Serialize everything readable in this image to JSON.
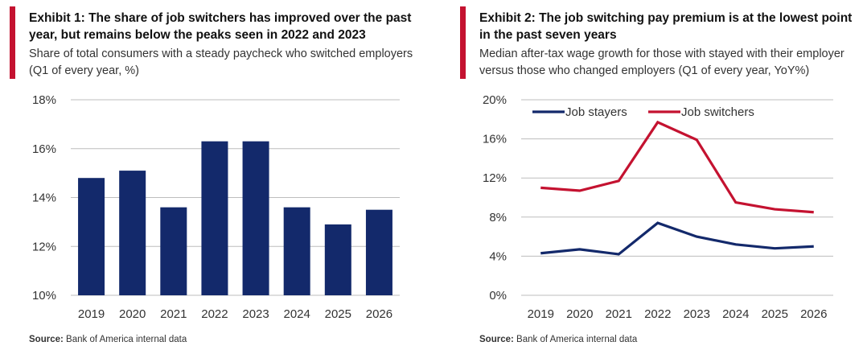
{
  "chart_data": [
    {
      "type": "bar",
      "title": "Exhibit 1: The share of job switchers has improved over the past year, but remains below the peaks seen in 2022 and 2023",
      "subtitle": "Share of total consumers with a steady paycheck who switched employers (Q1 of every year, %)",
      "source_label": "Source:",
      "source_text": "Bank of America internal data",
      "categories": [
        "2019",
        "2020",
        "2021",
        "2022",
        "2023",
        "2024",
        "2025",
        "2026"
      ],
      "values": [
        14.8,
        15.1,
        13.6,
        16.3,
        16.3,
        13.6,
        12.9,
        13.5
      ],
      "ylim": [
        10,
        18
      ],
      "yticks": [
        "10%",
        "12%",
        "14%",
        "16%",
        "18%"
      ],
      "ytick_values": [
        10,
        12,
        14,
        16,
        18
      ],
      "grid": true,
      "color": "#13296b"
    },
    {
      "type": "line",
      "title": "Exhibit 2: The job switching pay premium is at the lowest point in the past seven years",
      "subtitle": "Median after-tax wage growth for those with stayed with their employer versus those who changed employers (Q1 of every year, YoY%)",
      "source_label": "Source:",
      "source_text": "Bank of America internal data",
      "categories": [
        "2019",
        "2020",
        "2021",
        "2022",
        "2023",
        "2024",
        "2025",
        "2026"
      ],
      "series": [
        {
          "name": "Job stayers",
          "color": "#13296b",
          "values": [
            4.3,
            4.7,
            4.2,
            7.4,
            6.0,
            5.2,
            4.8,
            5.0
          ]
        },
        {
          "name": "Job switchers",
          "color": "#c41230",
          "values": [
            11.0,
            10.7,
            11.7,
            17.7,
            15.9,
            9.5,
            8.8,
            8.5
          ]
        }
      ],
      "ylim": [
        0,
        20
      ],
      "yticks": [
        "0%",
        "4%",
        "8%",
        "12%",
        "16%",
        "20%"
      ],
      "ytick_values": [
        0,
        4,
        8,
        12,
        16,
        20
      ],
      "legend_position": "top-left",
      "grid": true
    }
  ]
}
